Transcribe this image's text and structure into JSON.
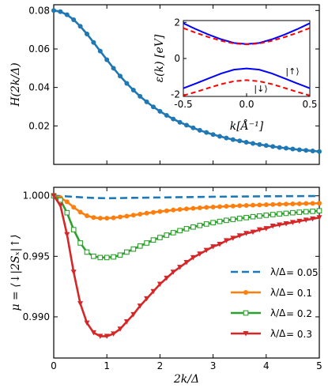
{
  "chart_data": [
    {
      "id": "top",
      "type": "line",
      "xlim": [
        0,
        5
      ],
      "ylim": [
        0,
        0.083
      ],
      "ylabel": "H(2k/Δ)",
      "yticks": [
        "0.02",
        "0.04",
        "0.06",
        "0.08"
      ],
      "ytick_values": [
        0.02,
        0.04,
        0.06,
        0.08
      ],
      "series": [
        {
          "color": "#1f77b4",
          "marker": "circle",
          "x": [
            0.0,
            0.125,
            0.25,
            0.375,
            0.5,
            0.625,
            0.75,
            0.875,
            1.0,
            1.125,
            1.25,
            1.375,
            1.5,
            1.625,
            1.75,
            1.875,
            2.0,
            2.125,
            2.25,
            2.375,
            2.5,
            2.625,
            2.75,
            2.875,
            3.0,
            3.125,
            3.25,
            3.375,
            3.5,
            3.625,
            3.75,
            3.875,
            4.0,
            4.125,
            4.25,
            4.375,
            4.5,
            4.625,
            4.75,
            4.875,
            5.0
          ],
          "y": [
            0.08,
            0.0794,
            0.0778,
            0.0752,
            0.0718,
            0.0678,
            0.0634,
            0.0589,
            0.0544,
            0.05,
            0.0459,
            0.0421,
            0.0386,
            0.0354,
            0.0325,
            0.0299,
            0.0276,
            0.0255,
            0.0236,
            0.0219,
            0.0204,
            0.019,
            0.0177,
            0.0166,
            0.0155,
            0.0146,
            0.0137,
            0.0129,
            0.0122,
            0.0115,
            0.0109,
            0.0103,
            0.0098,
            0.0093,
            0.0088,
            0.0084,
            0.008,
            0.0076,
            0.0073,
            0.007,
            0.0067
          ]
        }
      ]
    },
    {
      "id": "inset",
      "type": "line",
      "xlim": [
        -0.5,
        0.5
      ],
      "ylim": [
        -2.1,
        2.1
      ],
      "xlabel": "k[Å⁻¹]",
      "ylabel": "ε(k) [eV]",
      "xticks": [
        "-0.5",
        "0.0",
        "0.5"
      ],
      "xtick_values": [
        -0.5,
        0.0,
        0.5
      ],
      "yticks": [
        "-2",
        "0",
        "2"
      ],
      "ytick_values": [
        -2,
        0,
        2
      ],
      "annotations": [
        "|↑⟩",
        "|↓⟩"
      ],
      "series": [
        {
          "color": "#0000ff",
          "style": "solid",
          "band": "upper",
          "x": [
            -0.5,
            -0.4,
            -0.3,
            -0.2,
            -0.1,
            0.0,
            0.1,
            0.2,
            0.3,
            0.4,
            0.5
          ],
          "y": [
            1.95,
            1.62,
            1.32,
            1.06,
            0.86,
            0.8,
            0.86,
            1.06,
            1.32,
            1.62,
            1.95
          ]
        },
        {
          "color": "#ff0000",
          "style": "dashed",
          "band": "upper",
          "x": [
            -0.5,
            -0.4,
            -0.3,
            -0.2,
            -0.1,
            0.0,
            0.1,
            0.2,
            0.3,
            0.4,
            0.5
          ],
          "y": [
            1.68,
            1.42,
            1.18,
            0.98,
            0.83,
            0.78,
            0.83,
            0.98,
            1.18,
            1.42,
            1.68
          ]
        },
        {
          "color": "#0000ff",
          "style": "solid",
          "band": "lower",
          "x": [
            -0.5,
            -0.4,
            -0.3,
            -0.2,
            -0.1,
            0.0,
            0.1,
            0.2,
            0.3,
            0.4,
            0.5
          ],
          "y": [
            -1.65,
            -1.38,
            -1.1,
            -0.83,
            -0.62,
            -0.55,
            -0.62,
            -0.83,
            -1.1,
            -1.38,
            -1.65
          ]
        },
        {
          "color": "#ff0000",
          "style": "dashed",
          "band": "lower",
          "x": [
            -0.5,
            -0.4,
            -0.3,
            -0.2,
            -0.1,
            0.0,
            0.1,
            0.2,
            0.3,
            0.4,
            0.5
          ],
          "y": [
            -2.05,
            -1.85,
            -1.63,
            -1.42,
            -1.26,
            -1.2,
            -1.26,
            -1.42,
            -1.63,
            -1.85,
            -2.05
          ]
        }
      ]
    },
    {
      "id": "bottom",
      "type": "line",
      "xlim": [
        0,
        5
      ],
      "ylim": [
        0.9866,
        1.0007
      ],
      "xlabel": "2k/Δ",
      "ylabel": "μ = ⟨↓|2Sₓ|↑⟩",
      "xticks": [
        "0",
        "1",
        "2",
        "3",
        "4",
        "5"
      ],
      "xtick_values": [
        0,
        1,
        2,
        3,
        4,
        5
      ],
      "yticks": [
        "0.990",
        "0.995",
        "1.000"
      ],
      "ytick_values": [
        0.99,
        0.995,
        1.0
      ],
      "legend_position": "lower-right",
      "series": [
        {
          "name": "λ/Δ = 0.05",
          "legend_frac": "λ/Δ",
          "legend_value": "= 0.05",
          "color": "#1f77b4",
          "style": "dashed",
          "marker": "none",
          "x": [
            0.0,
            0.25,
            0.5,
            0.75,
            1.0,
            1.25,
            1.5,
            2.0,
            2.5,
            3.0,
            3.5,
            4.0,
            4.5,
            5.0
          ],
          "y": [
            1.0,
            0.99995,
            0.99988,
            0.99982,
            0.9998,
            0.99981,
            0.99983,
            0.99986,
            0.99989,
            0.99992,
            0.99994,
            0.99996,
            0.99997,
            0.99998
          ]
        },
        {
          "name": "λ/Δ = 0.1",
          "legend_frac": "λ/Δ",
          "legend_value": "= 0.1",
          "color": "#ff7f0e",
          "style": "solid",
          "marker": "circle",
          "x": [
            0.0,
            0.125,
            0.25,
            0.375,
            0.5,
            0.625,
            0.75,
            0.875,
            1.0,
            1.125,
            1.25,
            1.375,
            1.5,
            1.625,
            1.75,
            1.875,
            2.0,
            2.125,
            2.25,
            2.375,
            2.5,
            2.625,
            2.75,
            2.875,
            3.0,
            3.125,
            3.25,
            3.375,
            3.5,
            3.625,
            3.75,
            3.875,
            4.0,
            4.125,
            4.25,
            4.375,
            4.5,
            4.625,
            4.75,
            4.875,
            5.0
          ],
          "y": [
            1.0,
            0.99985,
            0.9995,
            0.99905,
            0.99865,
            0.99835,
            0.9982,
            0.99815,
            0.99815,
            0.99818,
            0.99825,
            0.99832,
            0.9984,
            0.99848,
            0.99856,
            0.99863,
            0.9987,
            0.99876,
            0.99882,
            0.99887,
            0.99892,
            0.99896,
            0.999,
            0.99904,
            0.99907,
            0.9991,
            0.99913,
            0.99915,
            0.99918,
            0.9992,
            0.99922,
            0.99924,
            0.99926,
            0.99928,
            0.9993,
            0.99931,
            0.99933,
            0.99934,
            0.99936,
            0.99937,
            0.99938
          ]
        },
        {
          "name": "λ/Δ = 0.2",
          "legend_frac": "λ/Δ",
          "legend_value": "= 0.2",
          "color": "#2ca02c",
          "style": "solid",
          "marker": "square-open",
          "x": [
            0.0,
            0.125,
            0.25,
            0.375,
            0.5,
            0.625,
            0.75,
            0.875,
            1.0,
            1.125,
            1.25,
            1.375,
            1.5,
            1.625,
            1.75,
            1.875,
            2.0,
            2.125,
            2.25,
            2.375,
            2.5,
            2.625,
            2.75,
            2.875,
            3.0,
            3.125,
            3.25,
            3.375,
            3.5,
            3.625,
            3.75,
            3.875,
            4.0,
            4.125,
            4.25,
            4.375,
            4.5,
            4.625,
            4.75,
            4.875,
            5.0
          ],
          "y": [
            1.0,
            0.99965,
            0.9986,
            0.9972,
            0.9961,
            0.99535,
            0.995,
            0.9949,
            0.9949,
            0.99495,
            0.9951,
            0.99535,
            0.9956,
            0.99585,
            0.9961,
            0.99635,
            0.99655,
            0.99675,
            0.99695,
            0.99712,
            0.99728,
            0.99742,
            0.99755,
            0.99767,
            0.99778,
            0.99788,
            0.99797,
            0.99805,
            0.99813,
            0.9982,
            0.99827,
            0.99833,
            0.99839,
            0.99845,
            0.9985,
            0.99855,
            0.9986,
            0.99864,
            0.99868,
            0.99872,
            0.99876
          ]
        },
        {
          "name": "λ/Δ = 0.3",
          "legend_frac": "λ/Δ",
          "legend_value": "= 0.3",
          "color": "#d62728",
          "style": "solid",
          "marker": "triangle-down",
          "x": [
            0.0,
            0.125,
            0.25,
            0.375,
            0.5,
            0.625,
            0.75,
            0.875,
            1.0,
            1.125,
            1.25,
            1.375,
            1.5,
            1.625,
            1.75,
            1.875,
            2.0,
            2.125,
            2.25,
            2.375,
            2.5,
            2.625,
            2.75,
            2.875,
            3.0,
            3.125,
            3.25,
            3.375,
            3.5,
            3.625,
            3.75,
            3.875,
            4.0,
            4.125,
            4.25,
            4.375,
            4.5,
            4.625,
            4.75,
            4.875,
            5.0
          ],
          "y": [
            1.0,
            0.9992,
            0.9968,
            0.9937,
            0.9911,
            0.9895,
            0.9887,
            0.9884,
            0.9884,
            0.9886,
            0.989,
            0.9896,
            0.9902,
            0.9909,
            0.9915,
            0.9921,
            0.9927,
            0.9932,
            0.9937,
            0.9941,
            0.9945,
            0.9949,
            0.9952,
            0.9955,
            0.9958,
            0.996,
            0.9963,
            0.9965,
            0.9967,
            0.9969,
            0.997,
            0.9972,
            0.9973,
            0.9975,
            0.9976,
            0.9977,
            0.9978,
            0.9979,
            0.998,
            0.9981,
            0.9982
          ]
        }
      ]
    }
  ]
}
